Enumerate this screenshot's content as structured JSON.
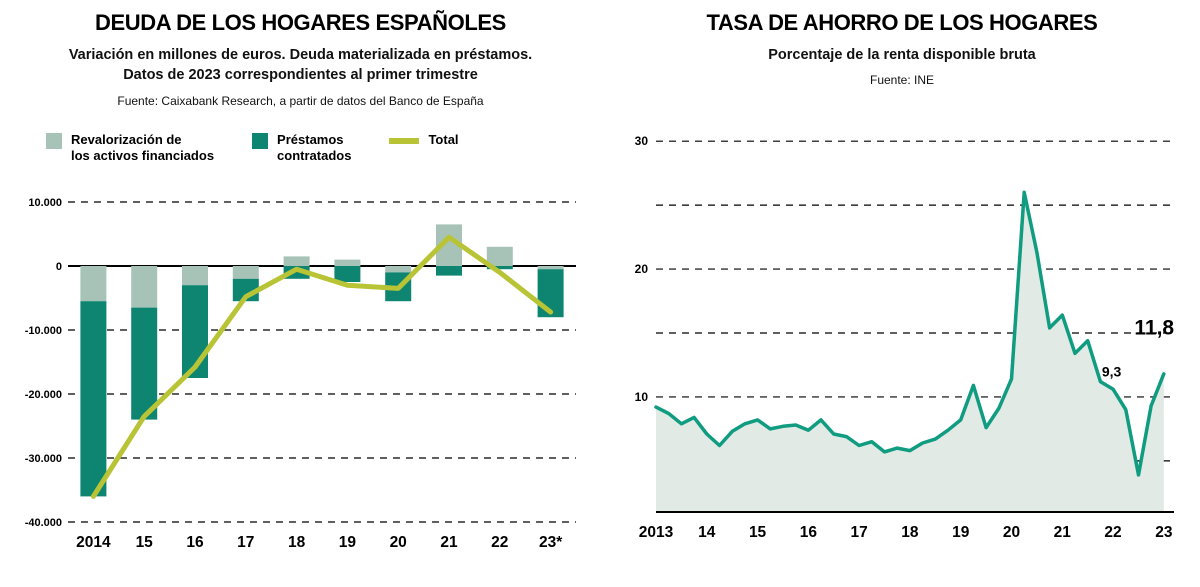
{
  "colors": {
    "teal_bar": "#0e8570",
    "sage_bar": "#a7c3b8",
    "olive_line": "#b8c435",
    "right_line": "#0f9c80",
    "right_fill": "#e1eae5",
    "grid": "#000000"
  },
  "deuda": {
    "title": "DEUDA DE LOS HOGARES ESPAÑOLES",
    "subtitle": "Variación en millones de euros. Deuda materializada en préstamos.\nDatos de 2023 correspondientes al primer trimestre",
    "source": "Fuente: Caixabank Research, a partir de datos del Banco de España",
    "legend": [
      {
        "label": "Revalorización de\nlos activos financiados",
        "color": "#a7c3b8",
        "kind": "square"
      },
      {
        "label": "Préstamos\ncontratados",
        "color": "#0e8570",
        "kind": "square"
      },
      {
        "label": "Total",
        "color": "#b8c435",
        "kind": "line"
      }
    ]
  },
  "ahorro": {
    "title": "TASA DE AHORRO DE LOS HOGARES",
    "subtitle": "Porcentaje de la renta disponible bruta",
    "source": "Fuente: INE"
  },
  "chart_data": [
    {
      "type": "bar",
      "title": "DEUDA DE LOS HOGARES ESPAÑOLES",
      "categories": [
        "2014",
        "15",
        "16",
        "17",
        "18",
        "19",
        "20",
        "21",
        "22",
        "23*"
      ],
      "series": [
        {
          "name": "Revalorización de los activos financiados",
          "type": "bar",
          "color": "#a7c3b8",
          "values": [
            -5500,
            -6500,
            -3000,
            -2000,
            1500,
            1000,
            -1000,
            6500,
            3000,
            -500
          ]
        },
        {
          "name": "Préstamos contratados",
          "type": "bar",
          "color": "#0e8570",
          "values": [
            -30500,
            -17500,
            -14500,
            -3500,
            -2000,
            -2500,
            -4500,
            -1500,
            -500,
            -7500
          ]
        },
        {
          "name": "Total",
          "type": "line",
          "color": "#b8c435",
          "values": [
            -36000,
            -23500,
            -15800,
            -4800,
            -500,
            -3000,
            -3500,
            4500,
            -1000,
            -7200
          ]
        }
      ],
      "ylim": [
        -40000,
        10000
      ],
      "yticks": [
        10000,
        0,
        -10000,
        -20000,
        -30000,
        -40000
      ],
      "ytick_labels": [
        "10.000",
        "0",
        "-10.000",
        "-20.000",
        "-30.000",
        "-40.000"
      ],
      "grid": "dashed",
      "legend_position": "top"
    },
    {
      "type": "area",
      "title": "TASA DE AHORRO DE LOS HOGARES",
      "x_start": 2013,
      "x_step": 0.25,
      "values": [
        9.2,
        8.7,
        7.9,
        8.4,
        7.1,
        6.2,
        7.3,
        7.9,
        8.2,
        7.5,
        7.7,
        7.8,
        7.4,
        8.2,
        7.1,
        6.9,
        6.2,
        6.5,
        5.7,
        6.0,
        5.8,
        6.4,
        6.7,
        7.4,
        8.2,
        10.9,
        7.6,
        9.1,
        11.4,
        26.0,
        21.3,
        15.4,
        16.4,
        13.4,
        14.4,
        11.2,
        10.6,
        9.0,
        3.9,
        9.3,
        11.8
      ],
      "xlim": [
        2013,
        2023.2
      ],
      "ylim": [
        1,
        31.5
      ],
      "x_tick_values": [
        2013,
        2014,
        2015,
        2016,
        2017,
        2018,
        2019,
        2020,
        2021,
        2022,
        2023
      ],
      "x_tick_labels": [
        "2013",
        "14",
        "15",
        "16",
        "17",
        "18",
        "19",
        "20",
        "21",
        "22",
        "23"
      ],
      "yticks": [
        5,
        10,
        15,
        20,
        25,
        30
      ],
      "ytick_labels": [
        "",
        "10",
        "",
        "20",
        "",
        "30"
      ],
      "line_color": "#0f9c80",
      "fill_color": "#e1eae5",
      "grid": "dashed",
      "annotations": [
        {
          "x": 2022.42,
          "y": 14.9,
          "text": "11,8",
          "size": 21
        },
        {
          "x": 2021.78,
          "y": 11.6,
          "text": "9,3",
          "size": 14
        }
      ]
    }
  ]
}
